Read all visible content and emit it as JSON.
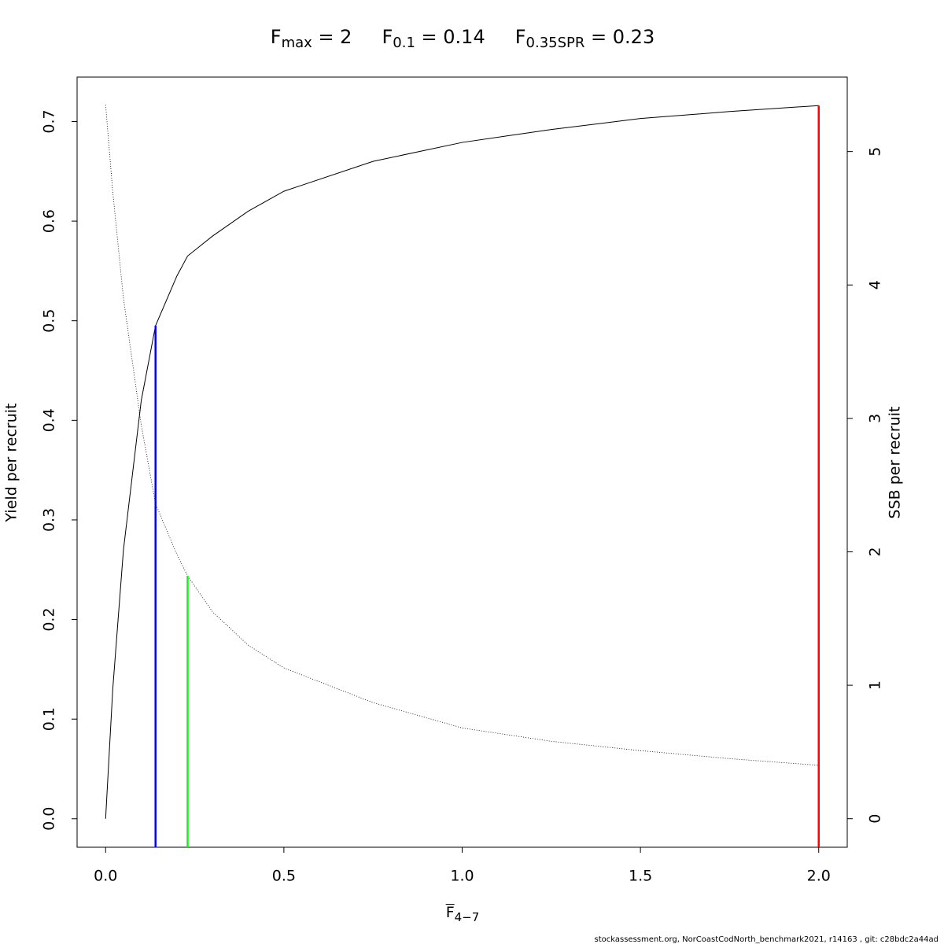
{
  "chart_data": {
    "type": "line",
    "title": [
      {
        "main": "F",
        "sub": "max",
        "rest": " = 2"
      },
      {
        "main": "F",
        "sub": "0.1",
        "rest": " = 0.14"
      },
      {
        "main": "F",
        "sub": "0.35SPR",
        "rest": " = 0.23"
      }
    ],
    "xlabel": {
      "main": "F",
      "sub": "4−7"
    },
    "ylabel": "Yield per recruit",
    "y2label": "SSB per recruit",
    "footer": "stockassessment.org, NorCoastCodNorth_benchmark2021, r14163 , git: c28bdc2a44ad",
    "x": [
      0,
      0.02,
      0.05,
      0.1,
      0.14,
      0.2,
      0.23,
      0.3,
      0.4,
      0.5,
      0.75,
      1,
      1.25,
      1.5,
      1.75,
      2
    ],
    "series": [
      {
        "color": "#000000",
        "linestyle": "solid",
        "values": [
          0,
          0.13,
          0.27,
          0.42,
          0.495,
          0.545,
          0.565,
          0.585,
          0.61,
          0.63,
          0.66,
          0.679,
          0.692,
          0.703,
          0.71,
          0.716
        ]
      },
      {
        "color": "#000000",
        "linestyle": "dotted",
        "axis": "y2",
        "values": [
          5.35,
          4.7,
          3.9,
          2.95,
          2.36,
          1.98,
          1.82,
          1.55,
          1.3,
          1.13,
          0.87,
          0.68,
          0.58,
          0.51,
          0.45,
          0.4
        ]
      }
    ],
    "vlines": [
      {
        "x": 0.14,
        "y": 0.495,
        "color": "#0000ff"
      },
      {
        "x": 0.23,
        "y": 1.82,
        "axis": "y2",
        "color": "#00ff00"
      },
      {
        "x": 2,
        "y": 0.716,
        "color": "#ff0000"
      }
    ],
    "xlim": [
      -0.08,
      2.08
    ],
    "xticks": [
      {
        "value": 0,
        "label": "0.0"
      },
      0.5,
      {
        "value": 1,
        "label": "1.0"
      },
      1.5,
      {
        "value": 2,
        "label": "2.0"
      }
    ],
    "ylim": [
      -0.0286,
      0.7446
    ],
    "yticks": [
      {
        "value": 0,
        "label": "0.0"
      },
      0.1,
      0.2,
      0.3,
      0.4,
      0.5,
      0.6,
      0.7
    ],
    "y2lim": [
      -0.214,
      5.558
    ],
    "y2ticks": [
      0,
      1,
      2,
      3,
      4,
      5
    ]
  }
}
